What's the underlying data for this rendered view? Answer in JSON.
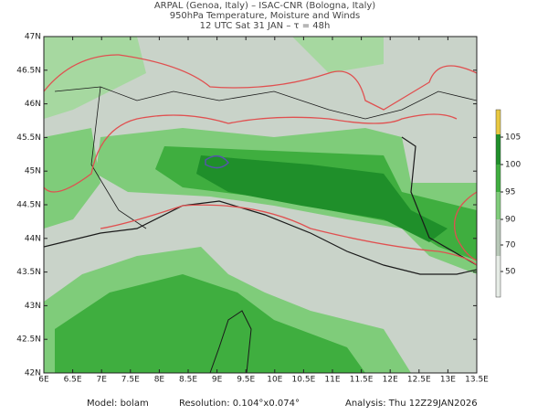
{
  "header": {
    "line1": "ARPAL (Genoa, Italy)  –  ISAC-CNR (Bologna, Italy)",
    "line2": "950hPa Temperature, Moisture and Winds",
    "line3": "12 UTC Sat 31 JAN  –  τ = 48h"
  },
  "map": {
    "lon_labels": [
      "6E",
      "6.5E",
      "7E",
      "7.5E",
      "8E",
      "8.5E",
      "9E",
      "9.5E",
      "10E",
      "10.5E",
      "11E",
      "11.5E",
      "12E",
      "12.5E",
      "13E",
      "13.5E"
    ],
    "lat_labels": [
      "47N",
      "46.5N",
      "46N",
      "45.5N",
      "45N",
      "44.5N",
      "44N",
      "43.5N",
      "43N",
      "42.5N",
      "42N"
    ]
  },
  "colorbar": {
    "labels": [
      "105",
      "100",
      "95",
      "90",
      "70",
      "50"
    ]
  },
  "footer": {
    "model": "Model: bolam",
    "resolution": "Resolution: 0.104°x0.074°",
    "analysis": "Analysis: Thu 12Z29JAN2026"
  }
}
